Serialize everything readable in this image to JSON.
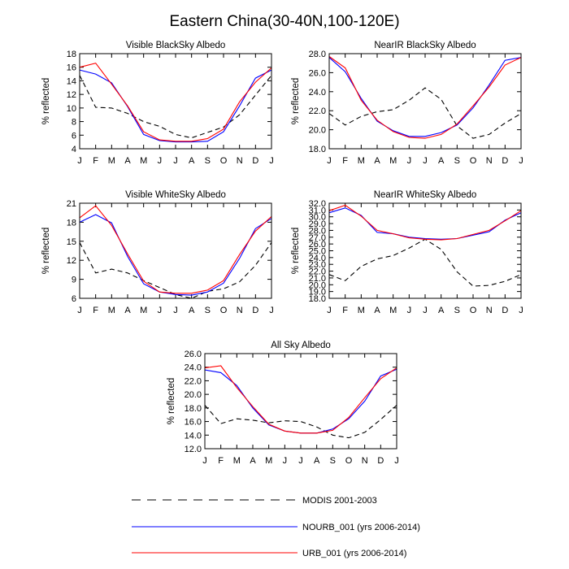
{
  "figure": {
    "title": "Eastern China(30-40N,100-120E)"
  },
  "series_styles": [
    {
      "key": "modis",
      "color": "#000000",
      "dash": "dashed"
    },
    {
      "key": "nourb",
      "color": "#0000ff",
      "dash": "solid"
    },
    {
      "key": "urb",
      "color": "#ff0000",
      "dash": "solid"
    }
  ],
  "legend": {
    "entries": [
      {
        "key": "modis",
        "label": "MODIS 2001-2003",
        "color": "#000000"
      },
      {
        "key": "nourb",
        "label": "NOURB_001 (yrs 2006-2014)",
        "color": "#0000ff"
      },
      {
        "key": "urb",
        "label": "URB_001 (yrs 2006-2014)",
        "color": "#ff0000"
      }
    ]
  },
  "chart_data": [
    {
      "type": "line",
      "title": "Visible BlackSky Albedo",
      "xlabel": "",
      "ylabel": "% reflected",
      "categories": [
        "J",
        "F",
        "M",
        "A",
        "M",
        "J",
        "J",
        "A",
        "S",
        "O",
        "N",
        "D",
        "J"
      ],
      "ylim": [
        4,
        18
      ],
      "yticks": [
        4,
        6,
        8,
        10,
        12,
        14,
        16,
        18
      ],
      "ytick_labels": [
        "4",
        "6",
        "8",
        "10",
        "12",
        "14",
        "16",
        "18"
      ],
      "series": [
        {
          "name": "MODIS 2001-2003",
          "key": "modis",
          "values": [
            14.8,
            10.1,
            10.0,
            9.2,
            8.0,
            7.3,
            6.1,
            5.6,
            6.4,
            7.2,
            9.0,
            11.9,
            14.8
          ]
        },
        {
          "name": "NOURB_001 (yrs 2006-2014)",
          "key": "nourb",
          "values": [
            15.6,
            15.0,
            13.7,
            10.2,
            6.1,
            5.2,
            5.0,
            5.0,
            5.1,
            6.5,
            10.3,
            14.4,
            15.6
          ]
        },
        {
          "name": "URB_001 (yrs 2006-2014)",
          "key": "urb",
          "values": [
            16.0,
            16.6,
            13.5,
            10.3,
            6.5,
            5.3,
            5.1,
            5.1,
            5.5,
            6.9,
            10.9,
            13.8,
            15.9
          ]
        }
      ]
    },
    {
      "type": "line",
      "title": "NearIR BlackSky Albedo",
      "xlabel": "",
      "ylabel": "% reflected",
      "categories": [
        "J",
        "F",
        "M",
        "A",
        "M",
        "J",
        "J",
        "A",
        "S",
        "O",
        "N",
        "D",
        "J"
      ],
      "ylim": [
        18,
        28
      ],
      "yticks": [
        18,
        20,
        22,
        24,
        26,
        28
      ],
      "ytick_labels": [
        "18.0",
        "20.0",
        "22.0",
        "24.0",
        "26.0",
        "28.0"
      ],
      "series": [
        {
          "name": "MODIS 2001-2003",
          "key": "modis",
          "values": [
            21.7,
            20.5,
            21.4,
            21.9,
            22.1,
            23.1,
            24.4,
            23.2,
            20.4,
            19.1,
            19.5,
            20.7,
            21.7
          ]
        },
        {
          "name": "NOURB_001 (yrs 2006-2014)",
          "key": "nourb",
          "values": [
            27.6,
            26.1,
            23.3,
            20.9,
            19.9,
            19.3,
            19.3,
            19.7,
            20.5,
            22.3,
            24.7,
            27.3,
            27.6
          ]
        },
        {
          "name": "URB_001 (yrs 2006-2014)",
          "key": "urb",
          "values": [
            27.7,
            26.5,
            23.1,
            21.0,
            19.8,
            19.2,
            19.1,
            19.5,
            20.6,
            22.5,
            24.5,
            26.8,
            27.6
          ]
        }
      ]
    },
    {
      "type": "line",
      "title": "Visible WhiteSky Albedo",
      "xlabel": "",
      "ylabel": "% reflected",
      "categories": [
        "J",
        "F",
        "M",
        "A",
        "M",
        "J",
        "J",
        "A",
        "S",
        "O",
        "N",
        "D",
        "J"
      ],
      "ylim": [
        6,
        21
      ],
      "yticks": [
        6,
        9,
        12,
        15,
        18,
        21
      ],
      "ytick_labels": [
        "6",
        "9",
        "12",
        "15",
        "18",
        "21"
      ],
      "series": [
        {
          "name": "MODIS 2001-2003",
          "key": "modis",
          "values": [
            14.8,
            10.0,
            10.6,
            10.0,
            8.8,
            7.7,
            6.6,
            6.0,
            7.1,
            7.5,
            8.6,
            11.2,
            14.8
          ]
        },
        {
          "name": "NOURB_001 (yrs 2006-2014)",
          "key": "nourb",
          "values": [
            18.0,
            19.2,
            17.9,
            12.6,
            8.3,
            7.0,
            6.6,
            6.5,
            7.0,
            8.4,
            12.3,
            17.0,
            18.6
          ]
        },
        {
          "name": "URB_001 (yrs 2006-2014)",
          "key": "urb",
          "values": [
            18.7,
            20.6,
            17.5,
            13.0,
            8.7,
            7.0,
            6.8,
            6.8,
            7.3,
            8.8,
            12.9,
            16.6,
            18.9
          ]
        }
      ]
    },
    {
      "type": "line",
      "title": "NearIR WhiteSky Albedo",
      "xlabel": "",
      "ylabel": "% reflected",
      "categories": [
        "J",
        "F",
        "M",
        "A",
        "M",
        "J",
        "J",
        "A",
        "S",
        "O",
        "N",
        "D",
        "J"
      ],
      "ylim": [
        18,
        32
      ],
      "yticks": [
        18,
        19,
        20,
        21,
        22,
        23,
        24,
        25,
        26,
        27,
        28,
        29,
        30,
        31,
        32
      ],
      "ytick_labels": [
        "18.0",
        "19.0",
        "20.0",
        "21.0",
        "22.0",
        "23.0",
        "24.0",
        "25.0",
        "26.0",
        "27.0",
        "28.0",
        "29.0",
        "30.0",
        "31.0",
        "32.0"
      ],
      "series": [
        {
          "name": "MODIS 2001-2003",
          "key": "modis",
          "values": [
            21.5,
            20.6,
            22.7,
            23.8,
            24.3,
            25.4,
            26.7,
            25.2,
            21.9,
            19.8,
            19.9,
            20.5,
            21.5
          ]
        },
        {
          "name": "NOURB_001 (yrs 2006-2014)",
          "key": "nourb",
          "values": [
            30.6,
            31.3,
            30.2,
            27.7,
            27.5,
            27.0,
            26.8,
            26.7,
            26.8,
            27.3,
            27.8,
            29.5,
            30.6
          ]
        },
        {
          "name": "URB_001 (yrs 2006-2014)",
          "key": "urb",
          "values": [
            30.9,
            31.7,
            30.1,
            28.0,
            27.5,
            26.9,
            26.7,
            26.6,
            26.8,
            27.4,
            28.0,
            29.4,
            30.9
          ]
        }
      ]
    },
    {
      "type": "line",
      "title": "All Sky Albedo",
      "xlabel": "",
      "ylabel": "% reflected",
      "categories": [
        "J",
        "F",
        "M",
        "A",
        "M",
        "J",
        "J",
        "A",
        "S",
        "O",
        "N",
        "D",
        "J"
      ],
      "ylim": [
        12,
        26
      ],
      "yticks": [
        12,
        14,
        16,
        18,
        20,
        22,
        24,
        26
      ],
      "ytick_labels": [
        "12.0",
        "14.0",
        "16.0",
        "18.0",
        "20.0",
        "22.0",
        "24.0",
        "26.0"
      ],
      "series": [
        {
          "name": "MODIS 2001-2003",
          "key": "modis",
          "values": [
            18.4,
            15.7,
            16.4,
            16.2,
            15.8,
            16.1,
            16.0,
            15.2,
            14.0,
            13.6,
            14.4,
            16.3,
            18.4
          ]
        },
        {
          "name": "NOURB_001 (yrs 2006-2014)",
          "key": "nourb",
          "values": [
            23.6,
            23.2,
            21.3,
            18.0,
            15.5,
            14.6,
            14.3,
            14.3,
            14.9,
            16.4,
            19.0,
            22.7,
            23.7
          ]
        },
        {
          "name": "URB_001 (yrs 2006-2014)",
          "key": "urb",
          "values": [
            23.9,
            24.2,
            21.0,
            18.2,
            15.6,
            14.6,
            14.3,
            14.3,
            14.7,
            16.6,
            19.5,
            22.3,
            23.9
          ]
        }
      ]
    }
  ]
}
